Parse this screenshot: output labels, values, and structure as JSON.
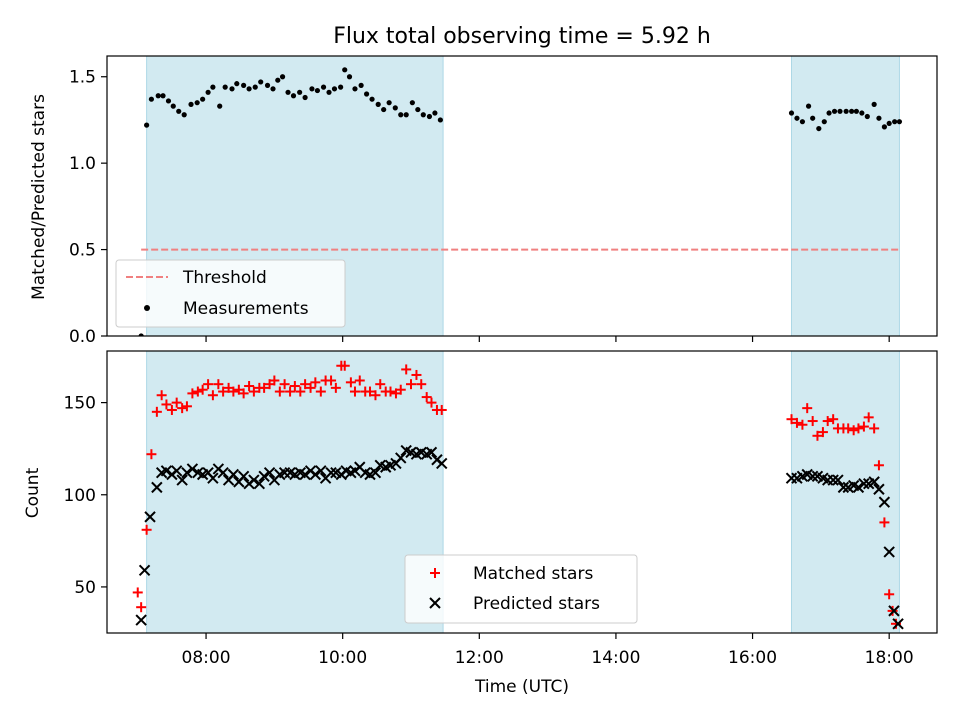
{
  "figure": {
    "title": "Flux total observing time = 5.92 h"
  },
  "chart_data": [
    {
      "type": "scatter",
      "panel": "top",
      "ylabel": "Matched/Predicted stars",
      "xlabel": "",
      "xlim": [
        6.55,
        18.7
      ],
      "ylim": [
        0,
        1.62
      ],
      "yticks": [
        0.0,
        0.5,
        1.0,
        1.5
      ],
      "ytick_labels": [
        "0.0",
        "0.5",
        "1.0",
        "1.5"
      ],
      "xticks": [
        8,
        10,
        12,
        14,
        16,
        18
      ],
      "shaded_ranges": [
        [
          7.13,
          11.47
        ],
        [
          16.57,
          18.15
        ]
      ],
      "shade_color": "#add8e6",
      "legend": {
        "position": "lower-left",
        "entries": [
          "Threshold",
          "Measurements"
        ]
      },
      "threshold": {
        "name": "Threshold",
        "y": 0.5,
        "x_range": [
          7.05,
          18.15
        ],
        "color": "#f08080",
        "style": "dashed"
      },
      "measurements": {
        "name": "Measurements",
        "color": "#000000",
        "x": [
          7.05,
          7.13,
          7.2,
          7.3,
          7.37,
          7.45,
          7.52,
          7.6,
          7.68,
          7.78,
          7.87,
          7.95,
          8.03,
          8.1,
          8.2,
          8.28,
          8.38,
          8.45,
          8.55,
          8.63,
          8.72,
          8.8,
          8.9,
          8.98,
          9.05,
          9.12,
          9.2,
          9.28,
          9.37,
          9.45,
          9.55,
          9.63,
          9.72,
          9.8,
          9.88,
          9.97,
          10.03,
          10.1,
          10.18,
          10.27,
          10.35,
          10.43,
          10.52,
          10.6,
          10.68,
          10.77,
          10.85,
          10.93,
          11.02,
          11.1,
          11.18,
          11.27,
          11.35,
          11.43,
          16.57,
          16.65,
          16.73,
          16.82,
          16.88,
          16.97,
          17.05,
          17.12,
          17.2,
          17.28,
          17.37,
          17.45,
          17.52,
          17.6,
          17.68,
          17.78,
          17.85,
          17.93,
          18.0,
          18.08,
          18.15
        ],
        "y": [
          0.0,
          1.22,
          1.37,
          1.39,
          1.39,
          1.36,
          1.33,
          1.3,
          1.28,
          1.34,
          1.35,
          1.37,
          1.41,
          1.44,
          1.33,
          1.44,
          1.43,
          1.46,
          1.45,
          1.43,
          1.44,
          1.47,
          1.45,
          1.43,
          1.48,
          1.5,
          1.41,
          1.39,
          1.41,
          1.38,
          1.43,
          1.42,
          1.44,
          1.41,
          1.43,
          1.44,
          1.54,
          1.5,
          1.43,
          1.45,
          1.4,
          1.37,
          1.34,
          1.31,
          1.35,
          1.32,
          1.28,
          1.28,
          1.35,
          1.31,
          1.28,
          1.27,
          1.29,
          1.25,
          1.29,
          1.26,
          1.24,
          1.33,
          1.26,
          1.2,
          1.24,
          1.29,
          1.3,
          1.3,
          1.3,
          1.3,
          1.3,
          1.29,
          1.27,
          1.34,
          1.26,
          1.21,
          1.23,
          1.24,
          1.24
        ]
      }
    },
    {
      "type": "scatter",
      "panel": "bottom",
      "xlabel": "Time (UTC)",
      "ylabel": "Count",
      "xlim": [
        6.55,
        18.7
      ],
      "ylim": [
        25,
        178
      ],
      "yticks": [
        50,
        100,
        150
      ],
      "ytick_labels": [
        "50",
        "100",
        "150"
      ],
      "xticks": [
        8,
        10,
        12,
        14,
        16,
        18
      ],
      "xtick_labels": [
        "08:00",
        "10:00",
        "12:00",
        "14:00",
        "16:00",
        "18:00"
      ],
      "shaded_ranges": [
        [
          7.13,
          11.47
        ],
        [
          16.57,
          18.15
        ]
      ],
      "shade_color": "#add8e6",
      "legend": {
        "position": "lower-center",
        "entries": [
          "Matched stars",
          "Predicted stars"
        ]
      },
      "series": [
        {
          "name": "Matched stars",
          "marker": "plus",
          "color": "#ff0000",
          "x": [
            7.0,
            7.05,
            7.13,
            7.2,
            7.28,
            7.35,
            7.42,
            7.5,
            7.57,
            7.65,
            7.72,
            7.8,
            7.88,
            7.95,
            8.03,
            8.1,
            8.18,
            8.25,
            8.33,
            8.4,
            8.48,
            8.55,
            8.63,
            8.7,
            8.78,
            8.85,
            8.93,
            9.0,
            9.08,
            9.15,
            9.23,
            9.3,
            9.38,
            9.45,
            9.53,
            9.6,
            9.68,
            9.75,
            9.83,
            9.9,
            9.98,
            10.03,
            10.12,
            10.18,
            10.25,
            10.33,
            10.4,
            10.48,
            10.55,
            10.63,
            10.7,
            10.78,
            10.85,
            10.93,
            11.0,
            11.08,
            11.15,
            11.23,
            11.3,
            11.38,
            11.45,
            16.57,
            16.65,
            16.73,
            16.8,
            16.88,
            16.95,
            17.03,
            17.1,
            17.18,
            17.25,
            17.33,
            17.4,
            17.48,
            17.55,
            17.63,
            17.7,
            17.78,
            17.85,
            17.93,
            18.0,
            18.05,
            18.1
          ],
          "y": [
            47,
            39,
            81,
            122,
            145,
            154,
            149,
            146,
            150,
            147,
            148,
            155,
            156,
            157,
            160,
            154,
            160,
            156,
            158,
            156,
            157,
            155,
            159,
            156,
            158,
            158,
            160,
            162,
            156,
            160,
            156,
            159,
            156,
            160,
            158,
            161,
            156,
            162,
            162,
            158,
            170,
            170,
            161,
            156,
            162,
            156,
            156,
            154,
            160,
            156,
            156,
            155,
            157,
            168,
            160,
            165,
            160,
            153,
            150,
            146,
            146,
            141,
            139,
            138,
            147,
            140,
            132,
            134,
            140,
            141,
            136,
            136,
            136,
            135,
            136,
            137,
            142,
            136,
            116,
            85,
            46,
            37,
            30
          ]
        },
        {
          "name": "Predicted stars",
          "marker": "x",
          "color": "#000000",
          "x": [
            7.05,
            7.1,
            7.18,
            7.28,
            7.35,
            7.42,
            7.5,
            7.57,
            7.65,
            7.72,
            7.8,
            7.88,
            7.95,
            8.03,
            8.1,
            8.18,
            8.25,
            8.33,
            8.4,
            8.48,
            8.55,
            8.63,
            8.7,
            8.78,
            8.85,
            8.93,
            9.0,
            9.08,
            9.15,
            9.23,
            9.3,
            9.38,
            9.45,
            9.53,
            9.6,
            9.68,
            9.75,
            9.83,
            9.9,
            9.98,
            10.05,
            10.12,
            10.18,
            10.25,
            10.33,
            10.4,
            10.48,
            10.55,
            10.63,
            10.7,
            10.78,
            10.85,
            10.93,
            11.0,
            11.08,
            11.15,
            11.23,
            11.3,
            11.38,
            11.45,
            16.57,
            16.65,
            16.73,
            16.8,
            16.88,
            16.95,
            17.03,
            17.1,
            17.18,
            17.25,
            17.33,
            17.4,
            17.48,
            17.55,
            17.63,
            17.7,
            17.78,
            17.85,
            17.93,
            18.0,
            18.07,
            18.13
          ],
          "y": [
            32,
            59,
            88,
            104,
            112,
            113,
            111,
            113,
            108,
            112,
            114,
            112,
            111,
            112,
            109,
            114,
            112,
            108,
            111,
            107,
            110,
            106,
            108,
            106,
            110,
            112,
            108,
            111,
            112,
            112,
            111,
            112,
            111,
            113,
            111,
            113,
            109,
            112,
            112,
            111,
            113,
            112,
            113,
            115,
            112,
            111,
            112,
            116,
            115,
            116,
            117,
            120,
            124,
            123,
            122,
            123,
            122,
            123,
            119,
            117,
            109,
            109,
            110,
            111,
            110,
            110,
            109,
            108,
            108,
            108,
            104,
            104,
            105,
            104,
            106,
            106,
            107,
            103,
            96,
            69,
            37,
            30
          ]
        }
      ]
    }
  ]
}
